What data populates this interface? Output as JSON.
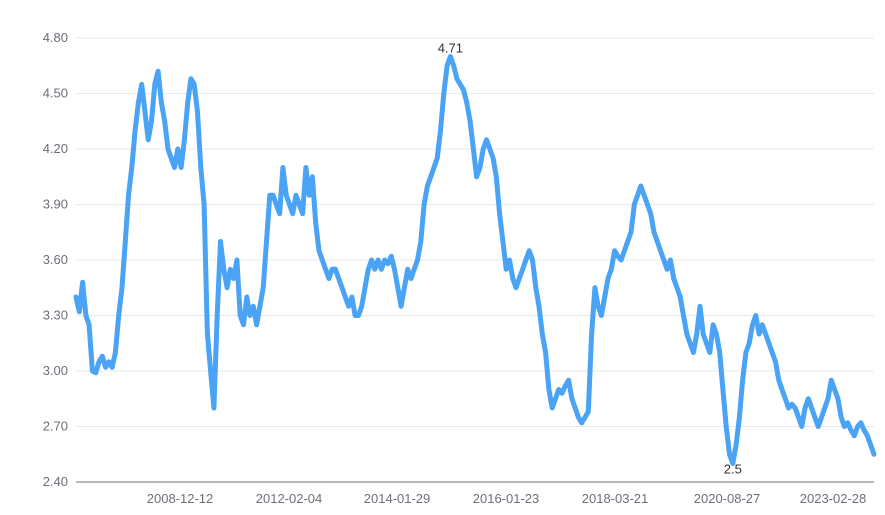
{
  "chart_data": {
    "type": "line",
    "title": "",
    "xlabel": "",
    "ylabel": "",
    "ylim": [
      2.4,
      4.8
    ],
    "y_ticks": [
      "2.40",
      "2.70",
      "3.00",
      "3.30",
      "3.60",
      "3.90",
      "4.20",
      "4.50",
      "4.80"
    ],
    "x_ticks": [
      "2008-12-12",
      "2012-02-04",
      "2014-01-29",
      "2016-01-23",
      "2018-03-21",
      "2020-08-27",
      "2023-02-28"
    ],
    "grid": true,
    "line_color": "#4aa3f5",
    "series": [
      {
        "name": "",
        "values": [
          3.4,
          3.32,
          3.48,
          3.3,
          3.25,
          3.0,
          2.99,
          3.05,
          3.08,
          3.02,
          3.05,
          3.02,
          3.1,
          3.3,
          3.45,
          3.7,
          3.95,
          4.1,
          4.3,
          4.45,
          4.55,
          4.4,
          4.25,
          4.35,
          4.55,
          4.62,
          4.45,
          4.35,
          4.2,
          4.15,
          4.1,
          4.2,
          4.1,
          4.25,
          4.45,
          4.58,
          4.55,
          4.4,
          4.1,
          3.9,
          3.2,
          3.0,
          2.8,
          3.3,
          3.7,
          3.55,
          3.45,
          3.55,
          3.5,
          3.6,
          3.3,
          3.25,
          3.4,
          3.3,
          3.35,
          3.25,
          3.35,
          3.45,
          3.7,
          3.95,
          3.95,
          3.9,
          3.85,
          4.1,
          3.95,
          3.9,
          3.85,
          3.95,
          3.9,
          3.85,
          4.1,
          3.95,
          4.05,
          3.8,
          3.65,
          3.6,
          3.55,
          3.5,
          3.55,
          3.55,
          3.5,
          3.45,
          3.4,
          3.35,
          3.4,
          3.3,
          3.3,
          3.35,
          3.45,
          3.55,
          3.6,
          3.55,
          3.6,
          3.55,
          3.6,
          3.58,
          3.62,
          3.55,
          3.45,
          3.35,
          3.45,
          3.55,
          3.5,
          3.55,
          3.6,
          3.7,
          3.9,
          4.0,
          4.05,
          4.1,
          4.15,
          4.3,
          4.5,
          4.65,
          4.7,
          4.65,
          4.58,
          4.55,
          4.52,
          4.45,
          4.35,
          4.2,
          4.05,
          4.1,
          4.2,
          4.25,
          4.2,
          4.15,
          4.05,
          3.85,
          3.7,
          3.55,
          3.6,
          3.5,
          3.45,
          3.5,
          3.55,
          3.6,
          3.65,
          3.6,
          3.45,
          3.35,
          3.2,
          3.1,
          2.9,
          2.8,
          2.85,
          2.9,
          2.88,
          2.92,
          2.95,
          2.85,
          2.8,
          2.75,
          2.72,
          2.75,
          2.78,
          3.2,
          3.45,
          3.35,
          3.3,
          3.4,
          3.5,
          3.55,
          3.65,
          3.62,
          3.6,
          3.65,
          3.7,
          3.75,
          3.9,
          3.95,
          4.0,
          3.95,
          3.9,
          3.85,
          3.75,
          3.7,
          3.65,
          3.6,
          3.55,
          3.6,
          3.5,
          3.45,
          3.4,
          3.3,
          3.2,
          3.15,
          3.1,
          3.2,
          3.35,
          3.2,
          3.15,
          3.1,
          3.25,
          3.2,
          3.1,
          2.9,
          2.7,
          2.55,
          2.5,
          2.6,
          2.75,
          2.95,
          3.1,
          3.15,
          3.25,
          3.3,
          3.2,
          3.25,
          3.2,
          3.15,
          3.1,
          3.05,
          2.95,
          2.9,
          2.85,
          2.8,
          2.82,
          2.8,
          2.75,
          2.7,
          2.8,
          2.85,
          2.8,
          2.75,
          2.7,
          2.75,
          2.8,
          2.85,
          2.95,
          2.9,
          2.85,
          2.75,
          2.7,
          2.72,
          2.68,
          2.65,
          2.7,
          2.72,
          2.68,
          2.65,
          2.6,
          2.55
        ]
      }
    ],
    "annotations": [
      {
        "text": "4.71",
        "value": 4.71,
        "index": 114
      },
      {
        "text": "2.5",
        "value": 2.5,
        "index": 200
      }
    ]
  }
}
